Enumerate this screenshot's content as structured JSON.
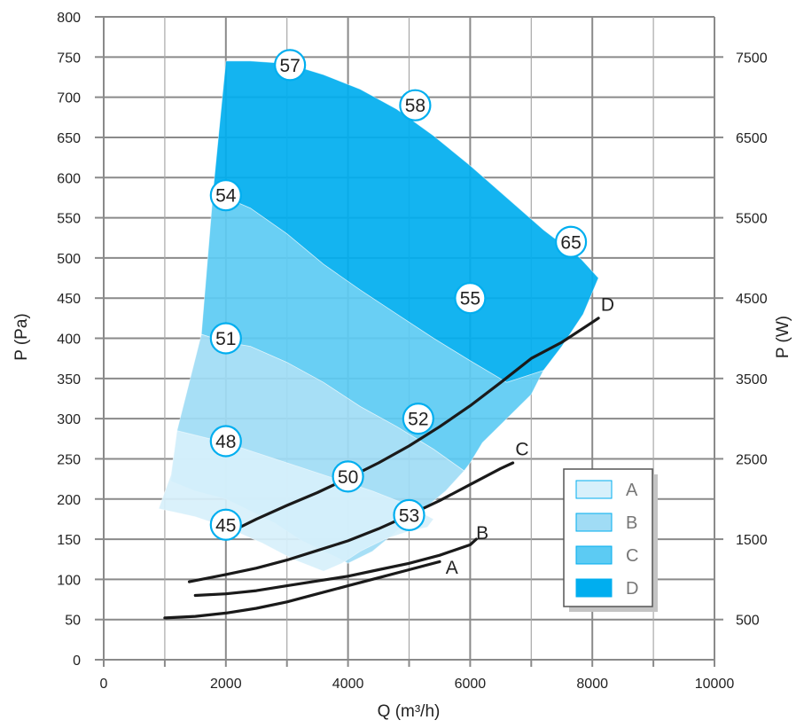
{
  "chart_data": {
    "type": "area",
    "xlabel": "Q (m³/h)",
    "ylabel": "P (Pa)",
    "y2label": "P (W)",
    "xlim": [
      0,
      10000
    ],
    "ylim": [
      0,
      800
    ],
    "y2lim": [
      0,
      8000
    ],
    "x_ticks": [
      0,
      2000,
      4000,
      6000,
      8000,
      10000
    ],
    "y_ticks": [
      0,
      50,
      100,
      150,
      200,
      250,
      300,
      350,
      400,
      450,
      500,
      550,
      600,
      650,
      700,
      750,
      800
    ],
    "y2_ticks": [
      500,
      1500,
      2500,
      3500,
      4500,
      5500,
      6500,
      7500
    ],
    "grid": true,
    "legend": {
      "position": "bottom-right",
      "entries": [
        {
          "name": "A",
          "color": "#d7f0fb"
        },
        {
          "name": "B",
          "color": "#a0dcf5"
        },
        {
          "name": "C",
          "color": "#5ccbf3"
        },
        {
          "name": "D",
          "color": "#00aeef"
        }
      ]
    },
    "regions": [
      {
        "name": "D",
        "color": "#00aeef",
        "boundary": [
          [
            2000,
            745
          ],
          [
            2400,
            745
          ],
          [
            3000,
            742
          ],
          [
            3600,
            728
          ],
          [
            4200,
            710
          ],
          [
            4800,
            685
          ],
          [
            5400,
            652
          ],
          [
            6000,
            615
          ],
          [
            6600,
            575
          ],
          [
            7200,
            535
          ],
          [
            7800,
            500
          ],
          [
            8100,
            475
          ],
          [
            7850,
            430
          ],
          [
            7500,
            390
          ],
          [
            7200,
            360
          ],
          [
            6600,
            345
          ],
          [
            6000,
            372
          ],
          [
            5400,
            400
          ],
          [
            4800,
            430
          ],
          [
            4200,
            460
          ],
          [
            3600,
            492
          ],
          [
            3000,
            530
          ],
          [
            2400,
            562
          ],
          [
            2000,
            575
          ],
          [
            1800,
            590
          ]
        ]
      },
      {
        "name": "C",
        "color": "#5ccbf3",
        "boundary": [
          [
            1800,
            590
          ],
          [
            2000,
            575
          ],
          [
            2400,
            562
          ],
          [
            3000,
            530
          ],
          [
            3600,
            492
          ],
          [
            4200,
            460
          ],
          [
            4800,
            430
          ],
          [
            5400,
            400
          ],
          [
            6000,
            372
          ],
          [
            6600,
            345
          ],
          [
            7200,
            360
          ],
          [
            7000,
            330
          ],
          [
            6600,
            300
          ],
          [
            6200,
            270
          ],
          [
            6000,
            245
          ],
          [
            5900,
            235
          ],
          [
            5400,
            262
          ],
          [
            4800,
            290
          ],
          [
            4200,
            315
          ],
          [
            3600,
            345
          ],
          [
            3000,
            370
          ],
          [
            2400,
            390
          ],
          [
            2000,
            395
          ],
          [
            1600,
            405
          ]
        ]
      },
      {
        "name": "B",
        "color": "#a0dcf5",
        "boundary": [
          [
            1600,
            405
          ],
          [
            2000,
            395
          ],
          [
            2400,
            390
          ],
          [
            3000,
            370
          ],
          [
            3600,
            345
          ],
          [
            4200,
            315
          ],
          [
            4800,
            290
          ],
          [
            5400,
            262
          ],
          [
            5900,
            235
          ],
          [
            5600,
            210
          ],
          [
            5200,
            185
          ],
          [
            4800,
            160
          ],
          [
            4400,
            135
          ],
          [
            4000,
            120
          ],
          [
            3800,
            128
          ],
          [
            3600,
            135
          ],
          [
            3200,
            150
          ],
          [
            2800,
            170
          ],
          [
            2400,
            185
          ],
          [
            2000,
            200
          ],
          [
            1500,
            210
          ],
          [
            1100,
            222
          ],
          [
            1200,
            285
          ]
        ]
      },
      {
        "name": "A",
        "color": "#d7f0fb",
        "boundary": [
          [
            1200,
            285
          ],
          [
            2000,
            270
          ],
          [
            2600,
            255
          ],
          [
            3200,
            240
          ],
          [
            3800,
            225
          ],
          [
            4400,
            210
          ],
          [
            4900,
            195
          ],
          [
            5400,
            175
          ],
          [
            5300,
            165
          ],
          [
            5000,
            160
          ],
          [
            4600,
            150
          ],
          [
            4200,
            135
          ],
          [
            3900,
            120
          ],
          [
            3600,
            110
          ],
          [
            3100,
            125
          ],
          [
            2600,
            145
          ],
          [
            2000,
            165
          ],
          [
            1500,
            178
          ],
          [
            900,
            188
          ],
          [
            1100,
            230
          ]
        ]
      }
    ],
    "series": [
      {
        "name": "A",
        "x": [
          1000,
          1500,
          2000,
          2500,
          3000,
          3500,
          4000,
          4500,
          5000,
          5500
        ],
        "y": [
          52,
          54,
          58,
          64,
          72,
          82,
          92,
          102,
          112,
          122
        ]
      },
      {
        "name": "B",
        "x": [
          1500,
          2000,
          2500,
          3000,
          3500,
          4000,
          4500,
          5000,
          5500,
          6000,
          6100
        ],
        "y": [
          80,
          82,
          86,
          92,
          98,
          104,
          112,
          120,
          130,
          143,
          150
        ]
      },
      {
        "name": "C",
        "x": [
          1400,
          2000,
          2500,
          3000,
          3500,
          4000,
          4500,
          5000,
          5500,
          6000,
          6500,
          6700
        ],
        "y": [
          97,
          106,
          114,
          124,
          136,
          148,
          163,
          180,
          198,
          218,
          238,
          245
        ]
      },
      {
        "name": "D",
        "x": [
          2100,
          2500,
          3000,
          3500,
          4000,
          4500,
          5000,
          5500,
          6000,
          6500,
          7000,
          7500,
          8000,
          8100
        ],
        "y": [
          160,
          175,
          192,
          208,
          226,
          245,
          266,
          290,
          316,
          345,
          375,
          395,
          420,
          425
        ]
      }
    ],
    "curve_labels": [
      {
        "text": "A",
        "x": 5700,
        "y": 115
      },
      {
        "text": "B",
        "x": 6200,
        "y": 158
      },
      {
        "text": "C",
        "x": 6850,
        "y": 262
      },
      {
        "text": "D",
        "x": 8250,
        "y": 442
      }
    ],
    "annotations": [
      {
        "text": "57",
        "x": 3050,
        "y": 740
      },
      {
        "text": "58",
        "x": 5100,
        "y": 690
      },
      {
        "text": "54",
        "x": 2000,
        "y": 578
      },
      {
        "text": "65",
        "x": 7650,
        "y": 520
      },
      {
        "text": "55",
        "x": 6000,
        "y": 450
      },
      {
        "text": "51",
        "x": 2000,
        "y": 400
      },
      {
        "text": "52",
        "x": 5150,
        "y": 300
      },
      {
        "text": "48",
        "x": 2000,
        "y": 272
      },
      {
        "text": "50",
        "x": 4000,
        "y": 228
      },
      {
        "text": "53",
        "x": 5000,
        "y": 180
      },
      {
        "text": "45",
        "x": 2000,
        "y": 168
      }
    ]
  }
}
